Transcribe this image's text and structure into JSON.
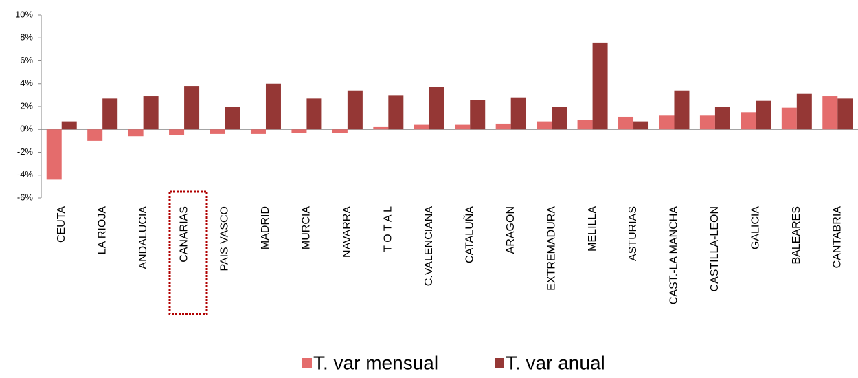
{
  "chart_data": {
    "type": "bar",
    "categories": [
      "CEUTA",
      "LA RIOJA",
      "ANDALUCIA",
      "CANARIAS",
      "PAIS VASCO",
      "MADRID",
      "MURCIA",
      "NAVARRA",
      "T O T A L",
      "C.VALENCIANA",
      "CATALUÑA",
      "ARAGON",
      "EXTREMADURA",
      "MELILLA",
      "ASTURIAS",
      "CAST.-LA MANCHA",
      "CASTILLA-LEON",
      "GALICIA",
      "BALEARES",
      "CANTABRIA"
    ],
    "series": [
      {
        "name": "T. var mensual",
        "color": "#e46c6c",
        "values": [
          -4.4,
          -1.0,
          -0.6,
          -0.5,
          -0.4,
          -0.4,
          -0.3,
          -0.3,
          0.2,
          0.4,
          0.4,
          0.5,
          0.7,
          0.8,
          1.1,
          1.2,
          1.2,
          1.5,
          1.9,
          2.9
        ]
      },
      {
        "name": "T. var anual",
        "color": "#953735",
        "values": [
          0.7,
          2.7,
          2.9,
          3.8,
          2.0,
          4.0,
          2.7,
          3.4,
          3.0,
          3.7,
          2.6,
          2.8,
          2.0,
          7.6,
          0.7,
          3.4,
          2.0,
          2.5,
          3.1,
          2.7
        ]
      }
    ],
    "ylim": [
      -6,
      10
    ],
    "yticks": [
      {
        "value": -6,
        "label": "-6%"
      },
      {
        "value": -4,
        "label": "-4%"
      },
      {
        "value": -2,
        "label": "-2%"
      },
      {
        "value": 0,
        "label": "0%"
      },
      {
        "value": 2,
        "label": "2%"
      },
      {
        "value": 4,
        "label": "4%"
      },
      {
        "value": 6,
        "label": "6%"
      },
      {
        "value": 8,
        "label": "8%"
      },
      {
        "value": 10,
        "label": "10%"
      }
    ],
    "grid": false,
    "legend": "bottom"
  }
}
